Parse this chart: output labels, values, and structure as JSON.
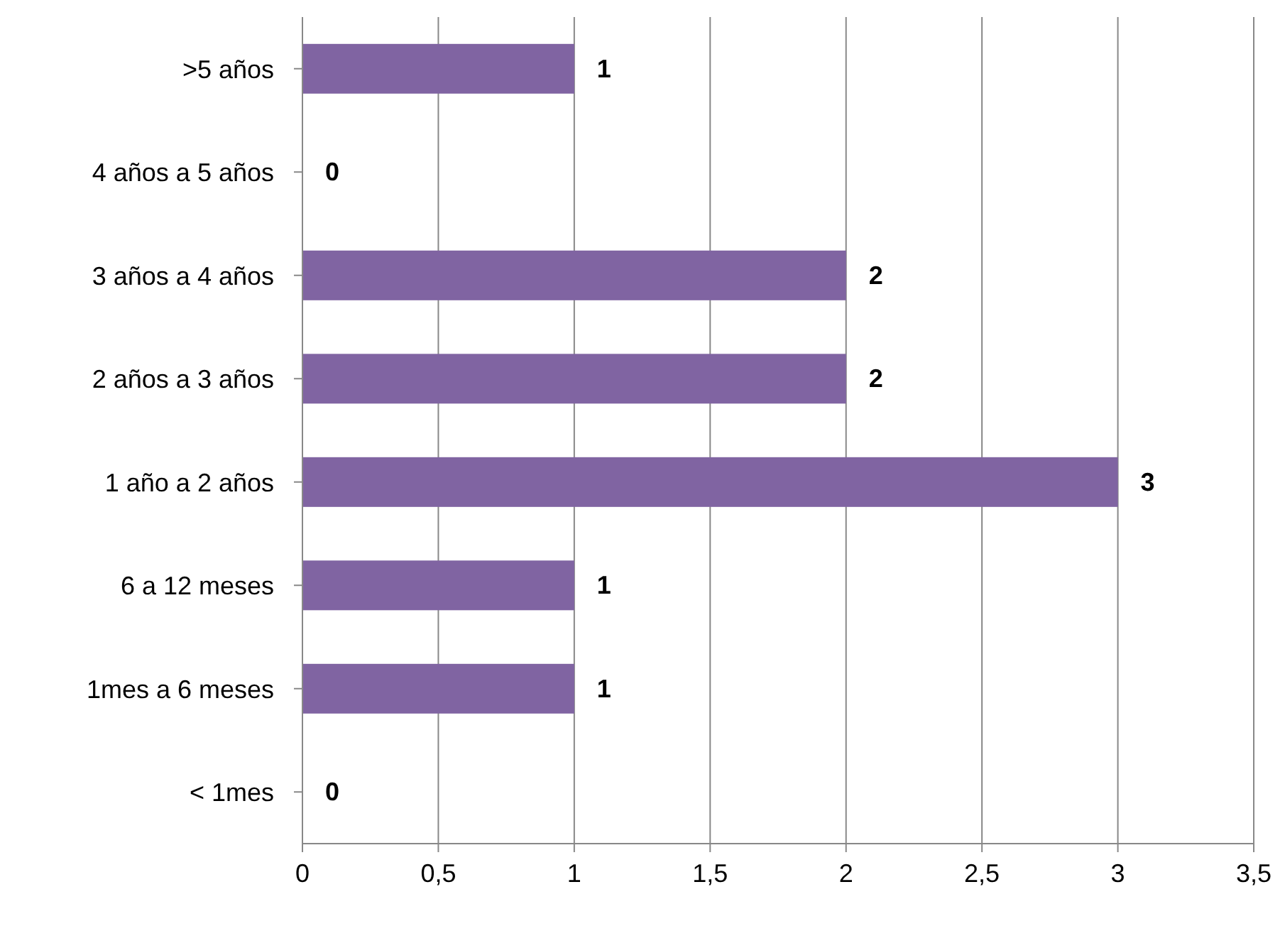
{
  "chart_data": {
    "type": "bar",
    "orientation": "horizontal",
    "categories": [
      ">5 años",
      "4 años a 5 años",
      "3 años a 4 años",
      "2 años a 3 años",
      "1 año a 2 años",
      "6 a 12 meses",
      "1mes a 6 meses ",
      "< 1mes"
    ],
    "values": [
      1,
      0,
      2,
      2,
      3,
      1,
      1,
      0
    ],
    "color": "#8064a2",
    "xlim": [
      0,
      3.5
    ],
    "xticks": [
      0,
      {
        "value": 0.5,
        "label": "0,5"
      },
      1,
      {
        "value": 1.5,
        "label": "1,5"
      },
      2,
      {
        "value": 2.5,
        "label": "2,5"
      },
      3,
      {
        "value": 3.5,
        "label": "3,5"
      }
    ],
    "grid": "x",
    "data_labels": true
  }
}
